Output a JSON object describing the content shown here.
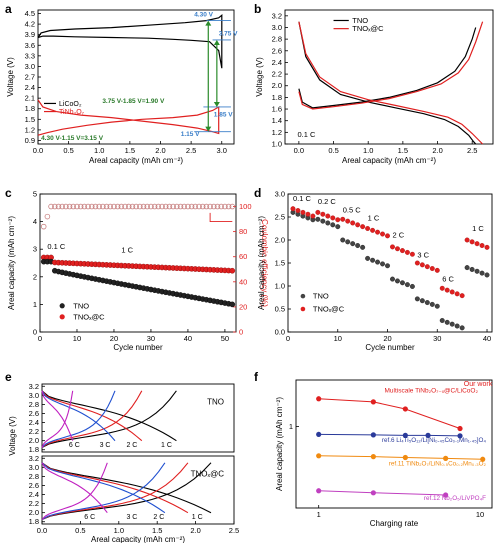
{
  "chart_data": [
    {
      "panel": "a",
      "type": "line",
      "xlabel": "Areal capacity (mAh cm⁻²)",
      "ylabel": "Voltage (V)",
      "xlim": [
        0.0,
        3.2
      ],
      "ylim": [
        0.8,
        4.6
      ],
      "xticks": [
        "0.0",
        "0.5",
        "1.0",
        "1.5",
        "2.0",
        "2.5",
        "3.0"
      ],
      "yticks": [
        "0.9",
        "1.2",
        "1.5",
        "1.8",
        "2.1",
        "2.4",
        "2.7",
        "3.0",
        "3.3",
        "3.6",
        "3.9",
        "4.2",
        "4.5"
      ],
      "legend": [
        "LiCoO₂",
        "TiNb₂O₇"
      ],
      "annotations": [
        "4.30 V",
        "3.75 V",
        "1.85 V",
        "1.15 V",
        "3.75 V-1.85 V=1.90 V",
        "4.30 V-1.15 V=3.15 V"
      ],
      "series": [
        {
          "name": "LiCoO₂",
          "color": "#000000",
          "loop": true,
          "x": [
            0.0,
            0.05,
            0.2,
            0.6,
            1.2,
            1.8,
            2.4,
            2.75,
            2.95,
            3.0,
            3.0,
            2.95,
            2.8,
            2.5,
            2.2,
            1.8,
            1.2,
            0.6,
            0.25,
            0.08,
            0.0
          ],
          "y": [
            3.82,
            3.95,
            4.02,
            4.06,
            4.1,
            4.17,
            4.24,
            4.3,
            4.38,
            4.45,
            2.95,
            3.45,
            3.7,
            3.74,
            3.77,
            3.8,
            3.82,
            3.84,
            3.86,
            3.86,
            3.82
          ]
        },
        {
          "name": "TiNb₂O₇",
          "color": "#e02020",
          "loop": true,
          "x": [
            0.0,
            0.08,
            0.3,
            0.7,
            1.2,
            1.7,
            2.2,
            2.6,
            2.85,
            2.95,
            2.95,
            2.85,
            2.6,
            2.2,
            1.7,
            1.2,
            0.8,
            0.4,
            0.15,
            0.0
          ],
          "y": [
            2.05,
            1.85,
            1.72,
            1.62,
            1.55,
            1.45,
            1.35,
            1.25,
            1.15,
            1.1,
            1.85,
            1.75,
            1.62,
            1.55,
            1.5,
            1.42,
            1.33,
            1.22,
            1.12,
            1.05
          ]
        }
      ]
    },
    {
      "panel": "b",
      "type": "line",
      "xlabel": "Areal capacity (mAh cm⁻²)",
      "ylabel": "Voltage (V)",
      "xlim": [
        -0.2,
        2.8
      ],
      "ylim": [
        1.0,
        3.3
      ],
      "xticks": [
        "0.0",
        "0.5",
        "1.0",
        "1.5",
        "2.0",
        "2.5"
      ],
      "yticks": [
        "1.0",
        "1.2",
        "1.4",
        "1.6",
        "1.8",
        "2.0",
        "2.2",
        "2.4",
        "2.6",
        "2.8",
        "3.0",
        "3.2"
      ],
      "legend": [
        "TNO",
        "TNOₓ@C"
      ],
      "annotations": [
        "0.1 C"
      ],
      "series": [
        {
          "name": "TNO discharge",
          "color": "#000000",
          "x": [
            0.0,
            0.1,
            0.3,
            0.6,
            1.0,
            1.4,
            1.8,
            2.1,
            2.3,
            2.45,
            2.52,
            2.55
          ],
          "y": [
            3.1,
            2.5,
            2.1,
            1.85,
            1.72,
            1.62,
            1.52,
            1.42,
            1.3,
            1.15,
            1.04,
            1.0
          ]
        },
        {
          "name": "TNO charge",
          "color": "#000000",
          "x": [
            0.0,
            0.05,
            0.2,
            0.5,
            0.9,
            1.3,
            1.7,
            2.0,
            2.25,
            2.4,
            2.5,
            2.55
          ],
          "y": [
            1.95,
            1.72,
            1.62,
            1.66,
            1.72,
            1.8,
            1.92,
            2.05,
            2.25,
            2.5,
            2.8,
            3.0
          ]
        },
        {
          "name": "TNOₓ@C discharge",
          "color": "#e02020",
          "x": [
            0.0,
            0.1,
            0.3,
            0.6,
            1.0,
            1.4,
            1.8,
            2.15,
            2.35,
            2.5,
            2.6,
            2.65
          ],
          "y": [
            3.1,
            2.55,
            2.15,
            1.9,
            1.76,
            1.66,
            1.56,
            1.46,
            1.34,
            1.18,
            1.06,
            1.0
          ]
        },
        {
          "name": "TNOₓ@C charge",
          "color": "#e02020",
          "x": [
            0.0,
            0.05,
            0.2,
            0.5,
            0.9,
            1.3,
            1.7,
            2.05,
            2.3,
            2.45,
            2.55,
            2.65
          ],
          "y": [
            1.9,
            1.68,
            1.6,
            1.64,
            1.7,
            1.78,
            1.9,
            2.03,
            2.22,
            2.45,
            2.75,
            3.1
          ]
        }
      ]
    },
    {
      "panel": "c",
      "type": "scatter",
      "xlabel": "Cycle number",
      "ylabel": "Areal capacity (mAh cm⁻²)",
      "ylabel_right": "Coulombic efficiency (%)",
      "xlim": [
        0,
        53
      ],
      "ylim": [
        0,
        5
      ],
      "ylim_right": [
        0,
        110
      ],
      "xticks": [
        "0",
        "10",
        "20",
        "30",
        "40",
        "50"
      ],
      "yticks": [
        "0",
        "1",
        "2",
        "3",
        "4",
        "5"
      ],
      "yticks_right": [
        "0",
        "20",
        "40",
        "60",
        "80",
        "100"
      ],
      "legend": [
        "TNO",
        "TNOₓ@C"
      ],
      "annotations": [
        "0.1 C",
        "1 C"
      ],
      "series": [
        {
          "name": "TNO",
          "color": "#000000",
          "capacity": {
            "start_0p1C": 2.55,
            "start_1C": 2.22,
            "end": 1.0
          }
        },
        {
          "name": "TNOₓ@C",
          "color": "#e02020",
          "capacity": {
            "start_0p1C": 2.7,
            "start_1C": 2.52,
            "end": 2.22
          }
        },
        {
          "name": "Coulombic efficiency",
          "color": "#c04040",
          "efficiency_first": [
            84,
            92,
            100
          ],
          "efficiency_plateau": 100
        }
      ]
    },
    {
      "panel": "d",
      "type": "scatter",
      "xlabel": "Cycle number",
      "ylabel": "Areal capacity (mAh cm⁻²)",
      "xlim": [
        0,
        41
      ],
      "ylim": [
        0,
        3.0
      ],
      "xticks": [
        "0",
        "10",
        "20",
        "30",
        "40"
      ],
      "yticks": [
        "0.0",
        "0.5",
        "1.0",
        "1.5",
        "2.0",
        "2.5",
        "3.0"
      ],
      "legend": [
        "TNO",
        "TNOₓ@C"
      ],
      "annotations": [
        "0.1 C",
        "0.2 C",
        "0.5 C",
        "1 C",
        "2 C",
        "3 C",
        "6 C",
        "1 C"
      ],
      "series": [
        {
          "name": "TNO",
          "color": "#000000",
          "points_per_step": 5,
          "step_values": [
            2.6,
            2.45,
            2.0,
            1.6,
            1.15,
            0.72,
            0.25,
            1.4
          ]
        },
        {
          "name": "TNOₓ@C",
          "color": "#e02020",
          "points_per_step": 5,
          "step_values": [
            2.68,
            2.6,
            2.45,
            2.25,
            1.85,
            1.5,
            0.95,
            2.0
          ]
        }
      ]
    },
    {
      "panel": "e",
      "type": "line",
      "xlabel": "Areal capacity (mAh cm⁻²)",
      "ylabel": "Voltage (V)",
      "xlim": [
        0,
        2.5
      ],
      "ylim_each": [
        1.75,
        3.25
      ],
      "xticks": [
        "0.0",
        "0.5",
        "1.0",
        "1.5",
        "2.0",
        "2.5"
      ],
      "yticks": [
        "1.8",
        "2.0",
        "2.2",
        "2.4",
        "2.6",
        "2.8",
        "3.0",
        "3.2"
      ],
      "subpanels": [
        {
          "name": "TNO",
          "rate_labels": [
            "6 C",
            "3 C",
            "2 C",
            "1 C"
          ],
          "curves": [
            {
              "rate": "1 C",
              "color": "#000000",
              "cap": 1.75
            },
            {
              "rate": "2 C",
              "color": "#e02020",
              "cap": 1.3
            },
            {
              "rate": "3 C",
              "color": "#2050d0",
              "cap": 0.95
            },
            {
              "rate": "6 C",
              "color": "#c020c0",
              "cap": 0.4
            }
          ]
        },
        {
          "name": "TNOₓ@C",
          "rate_labels": [
            "6 C",
            "3 C",
            "2 C",
            "1 C"
          ],
          "curves": [
            {
              "rate": "1 C",
              "color": "#000000",
              "cap": 2.2
            },
            {
              "rate": "2 C",
              "color": "#e02020",
              "cap": 1.9
            },
            {
              "rate": "3 C",
              "color": "#2050d0",
              "cap": 1.6
            },
            {
              "rate": "6 C",
              "color": "#c020c0",
              "cap": 0.85
            }
          ]
        }
      ]
    },
    {
      "panel": "f",
      "type": "line",
      "xlabel": "Charging rate",
      "ylabel": "Areal capacity (mAh cm⁻²)",
      "xscale": "log",
      "yscale": "log",
      "xticks": [
        "1",
        "10"
      ],
      "yticks": [
        "1"
      ],
      "series": [
        {
          "name": "Our work Multiscale TiNb₂O₇₋ₓ@C/LiCoO₂",
          "color": "#e02020",
          "marker": "circle",
          "x": [
            1,
            2,
            3,
            6
          ],
          "y": [
            2.0,
            1.85,
            1.55,
            0.95
          ]
        },
        {
          "name": "ref.6 Li₄Ti₅O₁₂/Li[Ni₀.₄₅Co₀.₁Mn₁.₄₅]O₄",
          "color": "#2a3a9a",
          "marker": "circle",
          "x": [
            1,
            2,
            3,
            4,
            6
          ],
          "y": [
            0.82,
            0.81,
            0.8,
            0.8,
            0.79
          ]
        },
        {
          "name": "ref.11 TiNb₂O₇/LiNi₀.₅Co₀.₂Mn₀.₃O₂",
          "color": "#f08a10",
          "marker": "circle",
          "x": [
            1,
            2,
            3,
            5,
            8
          ],
          "y": [
            0.48,
            0.47,
            0.46,
            0.45,
            0.44
          ]
        },
        {
          "name": "ref.12 Nb₂O₅/LiVPO₄F",
          "color": "#c040c0",
          "marker": "circle",
          "x": [
            1,
            2,
            5
          ],
          "y": [
            0.2,
            0.19,
            0.18
          ]
        }
      ]
    }
  ],
  "panel_labels": [
    "a",
    "b",
    "c",
    "d",
    "e",
    "f"
  ],
  "colors": {
    "black": "#000000",
    "red": "#e02020",
    "blue_annot": "#3a7ec8",
    "green_arrow": "#2a8a2a",
    "green_text": "#2a7a2a"
  }
}
